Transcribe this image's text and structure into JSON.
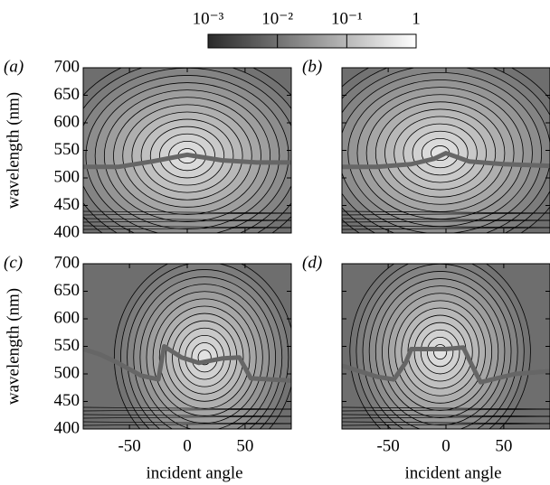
{
  "colorbar": {
    "log": true,
    "lim": [
      0.001,
      1
    ],
    "ticks": [
      {
        "value": 0.001,
        "label": "10⁻³"
      },
      {
        "value": 0.01,
        "label": "10⁻²"
      },
      {
        "value": 0.1,
        "label": "10⁻¹"
      },
      1
    ]
  },
  "chart_data": [
    {
      "type": "line",
      "label": "(a)",
      "ylabel": "wavelength (nm)",
      "xlim": [
        -90,
        90
      ],
      "ylim": [
        400,
        700
      ],
      "xticks": [
        -50,
        0,
        50
      ],
      "yticks": [
        400,
        450,
        500,
        550,
        600,
        650,
        700
      ],
      "series": [
        {
          "color": "#666666",
          "x": [
            -90,
            -60,
            -30,
            0,
            30,
            60,
            90
          ],
          "values": [
            520,
            520,
            530,
            542,
            532,
            528,
            528
          ]
        }
      ]
    },
    {
      "type": "line",
      "label": "(b)",
      "xlim": [
        -90,
        90
      ],
      "ylim": [
        400,
        700
      ],
      "xticks": [
        -50,
        0,
        50
      ],
      "yticks": [
        400,
        450,
        500,
        550,
        600,
        650,
        700
      ],
      "series": [
        {
          "color": "#666666",
          "x": [
            -90,
            -60,
            -30,
            -10,
            0,
            20,
            50,
            90
          ],
          "values": [
            520,
            520,
            525,
            535,
            545,
            530,
            525,
            522
          ]
        }
      ]
    },
    {
      "type": "line",
      "label": "(c)",
      "ylabel": "wavelength (nm)",
      "xlabel": "incident angle",
      "xlim": [
        -90,
        90
      ],
      "ylim": [
        400,
        700
      ],
      "xticks": [
        -50,
        0,
        50
      ],
      "yticks": [
        400,
        450,
        500,
        550,
        600,
        650,
        700
      ],
      "series": [
        {
          "color": "#666666",
          "x": [
            -90,
            -75,
            -60,
            -40,
            -25,
            -20,
            -5,
            10,
            30,
            45,
            55,
            90
          ],
          "values": [
            545,
            535,
            520,
            497,
            490,
            550,
            530,
            520,
            528,
            530,
            492,
            488
          ]
        }
      ]
    },
    {
      "type": "line",
      "label": "(d)",
      "xlabel": "incident angle",
      "xlim": [
        -90,
        90
      ],
      "ylim": [
        400,
        700
      ],
      "xticks": [
        -50,
        0,
        50
      ],
      "yticks": [
        400,
        450,
        500,
        550,
        600,
        650,
        700
      ],
      "series": [
        {
          "color": "#666666",
          "x": [
            -90,
            -60,
            -45,
            -35,
            -30,
            0,
            15,
            25,
            30,
            60,
            90
          ],
          "values": [
            515,
            495,
            490,
            520,
            545,
            545,
            548,
            505,
            485,
            500,
            505
          ]
        }
      ]
    }
  ]
}
